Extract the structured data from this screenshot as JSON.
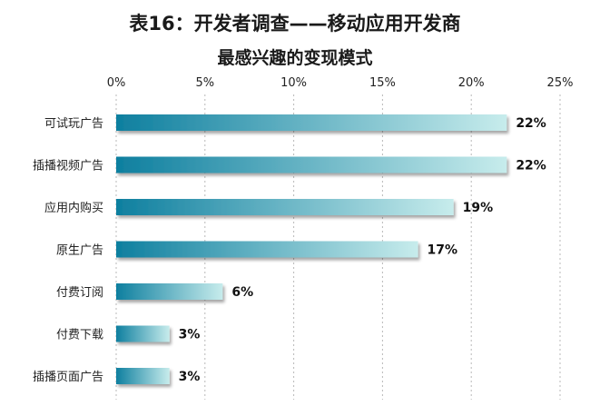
{
  "chart_data": {
    "type": "bar",
    "orientation": "horizontal",
    "title": "表16：开发者调查——移动应用开发商",
    "subtitle": "最感兴趣的变现模式",
    "categories": [
      "可试玩广告",
      "插播视频广告",
      "应用内购买",
      "原生广告",
      "付费订阅",
      "付费下载",
      "插播页面广告"
    ],
    "values": [
      22,
      22,
      19,
      17,
      6,
      3,
      3
    ],
    "value_labels": [
      "22%",
      "22%",
      "19%",
      "17%",
      "6%",
      "3%",
      "3%"
    ],
    "xlim": [
      0,
      25
    ],
    "x_ticks": [
      0,
      5,
      10,
      15,
      20,
      25
    ],
    "x_tick_labels": [
      "0%",
      "5%",
      "10%",
      "15%",
      "20%",
      "25%"
    ],
    "x_axis_position": "top",
    "grid": true,
    "legend": "none",
    "bar_gradient": [
      "#0e7f9f",
      "#c7ecec"
    ]
  }
}
